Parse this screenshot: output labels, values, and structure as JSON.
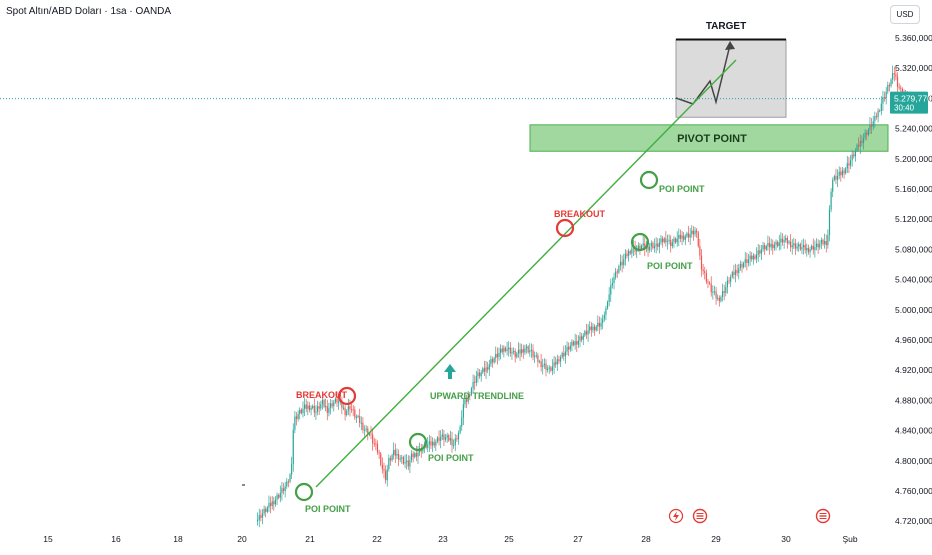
{
  "header": {
    "symbol_title": "Spot Altın/ABD Doları · 1sa · OANDA",
    "currency": "USD"
  },
  "price_tag": {
    "price": "5.279,770",
    "countdown": "30:40"
  },
  "chart_data": {
    "type": "candlestick",
    "x_tick_labels": [
      "15",
      "16",
      "18",
      "20",
      "21",
      "22",
      "23",
      "25",
      "27",
      "28",
      "29",
      "30",
      "Şub"
    ],
    "y_tick_labels": [
      "5.360,000",
      "5.320,000",
      "5.280,000",
      "5.240,000",
      "5.200,000",
      "5.160,000",
      "5.120,000",
      "5.080,000",
      "5.040,000",
      "5.000,000",
      "4.960,000",
      "4.920,000",
      "4.880,000",
      "4.840,000",
      "4.800,000",
      "4.760,000",
      "4.720,000"
    ],
    "y_axis": {
      "min": 4720,
      "max": 5360,
      "step": 40
    },
    "current_price": 5279.77,
    "price_path": [
      [
        0,
        4720
      ],
      [
        3,
        4728
      ],
      [
        6,
        4735
      ],
      [
        9,
        4742
      ],
      [
        13,
        4752
      ],
      [
        16,
        4760
      ],
      [
        19,
        4768
      ],
      [
        21,
        4780
      ],
      [
        22,
        4800
      ],
      [
        23,
        4842
      ],
      [
        24,
        4856
      ],
      [
        26,
        4862
      ],
      [
        28,
        4866
      ],
      [
        30,
        4870
      ],
      [
        33,
        4872
      ],
      [
        35,
        4870
      ],
      [
        37,
        4865
      ],
      [
        39,
        4872
      ],
      [
        41,
        4876
      ],
      [
        44,
        4868
      ],
      [
        47,
        4876
      ],
      [
        50,
        4880
      ],
      [
        53,
        4872
      ],
      [
        55,
        4865
      ],
      [
        58,
        4872
      ],
      [
        61,
        4860
      ],
      [
        64,
        4852
      ],
      [
        67,
        4842
      ],
      [
        70,
        4836
      ],
      [
        72,
        4826
      ],
      [
        74,
        4818
      ],
      [
        76,
        4808
      ],
      [
        78,
        4790
      ],
      [
        80,
        4778
      ],
      [
        82,
        4800
      ],
      [
        85,
        4810
      ],
      [
        88,
        4806
      ],
      [
        91,
        4800
      ],
      [
        94,
        4795
      ],
      [
        96,
        4805
      ],
      [
        99,
        4810
      ],
      [
        102,
        4816
      ],
      [
        105,
        4820
      ],
      [
        108,
        4822
      ],
      [
        111,
        4826
      ],
      [
        114,
        4832
      ],
      [
        117,
        4830
      ],
      [
        120,
        4828
      ],
      [
        122,
        4822
      ],
      [
        124,
        4832
      ],
      [
        126,
        4842
      ],
      [
        127,
        4860
      ],
      [
        128,
        4874
      ],
      [
        130,
        4880
      ],
      [
        132,
        4892
      ],
      [
        134,
        4902
      ],
      [
        136,
        4912
      ],
      [
        139,
        4916
      ],
      [
        142,
        4922
      ],
      [
        145,
        4932
      ],
      [
        148,
        4938
      ],
      [
        151,
        4944
      ],
      [
        154,
        4950
      ],
      [
        157,
        4946
      ],
      [
        160,
        4940
      ],
      [
        163,
        4944
      ],
      [
        166,
        4950
      ],
      [
        169,
        4946
      ],
      [
        172,
        4938
      ],
      [
        175,
        4930
      ],
      [
        178,
        4926
      ],
      [
        181,
        4920
      ],
      [
        184,
        4926
      ],
      [
        187,
        4936
      ],
      [
        190,
        4942
      ],
      [
        193,
        4950
      ],
      [
        196,
        4955
      ],
      [
        199,
        4960
      ],
      [
        202,
        4966
      ],
      [
        205,
        4972
      ],
      [
        208,
        4976
      ],
      [
        211,
        4980
      ],
      [
        214,
        4984
      ],
      [
        215,
        4996
      ],
      [
        217,
        5006
      ],
      [
        218,
        5022
      ],
      [
        220,
        5040
      ],
      [
        222,
        5048
      ],
      [
        224,
        5058
      ],
      [
        226,
        5062
      ],
      [
        228,
        5070
      ],
      [
        230,
        5076
      ],
      [
        232,
        5082
      ],
      [
        235,
        5080
      ],
      [
        238,
        5084
      ],
      [
        241,
        5082
      ],
      [
        244,
        5086
      ],
      [
        247,
        5084
      ],
      [
        250,
        5090
      ],
      [
        253,
        5094
      ],
      [
        256,
        5088
      ],
      [
        259,
        5092
      ],
      [
        262,
        5096
      ],
      [
        265,
        5098
      ],
      [
        268,
        5100
      ],
      [
        271,
        5104
      ],
      [
        272,
        5098
      ],
      [
        273,
        5086
      ],
      [
        274,
        5070
      ],
      [
        275,
        5058
      ],
      [
        277,
        5046
      ],
      [
        279,
        5036
      ],
      [
        281,
        5026
      ],
      [
        283,
        5020
      ],
      [
        285,
        5014
      ],
      [
        287,
        5018
      ],
      [
        290,
        5030
      ],
      [
        292,
        5040
      ],
      [
        295,
        5048
      ],
      [
        298,
        5056
      ],
      [
        301,
        5062
      ],
      [
        304,
        5066
      ],
      [
        307,
        5070
      ],
      [
        310,
        5076
      ],
      [
        313,
        5082
      ],
      [
        316,
        5084
      ],
      [
        319,
        5086
      ],
      [
        322,
        5088
      ],
      [
        325,
        5092
      ],
      [
        328,
        5090
      ],
      [
        331,
        5086
      ],
      [
        334,
        5084
      ],
      [
        337,
        5082
      ],
      [
        340,
        5080
      ],
      [
        343,
        5082
      ],
      [
        346,
        5084
      ],
      [
        349,
        5088
      ],
      [
        352,
        5090
      ],
      [
        353,
        5100
      ],
      [
        354,
        5130
      ],
      [
        355,
        5160
      ],
      [
        356,
        5172
      ],
      [
        358,
        5175
      ],
      [
        361,
        5180
      ],
      [
        364,
        5188
      ],
      [
        367,
        5198
      ],
      [
        370,
        5210
      ],
      [
        373,
        5222
      ],
      [
        376,
        5232
      ],
      [
        379,
        5242
      ],
      [
        382,
        5252
      ],
      [
        384,
        5262
      ],
      [
        386,
        5274
      ],
      [
        388,
        5284
      ],
      [
        390,
        5294
      ],
      [
        392,
        5304
      ],
      [
        394,
        5314
      ],
      [
        396,
        5300
      ],
      [
        398,
        5290
      ],
      [
        400,
        5282
      ],
      [
        402,
        5276
      ],
      [
        404,
        5279.77
      ]
    ],
    "annotations": {
      "target": "TARGET",
      "pivot": "PIVOT POINT",
      "breakout": "BREAKOUT",
      "poi": "POI POINT",
      "trendline": "UPWARD TRENDLINE"
    },
    "zones": {
      "pivot_low": 5210,
      "pivot_high": 5245,
      "target_low": 5255,
      "target_high": 5358
    }
  },
  "colors": {
    "up": "#26a69a",
    "down": "#ef5350",
    "trend": "#3fae3f",
    "pivot_fill": "#8fd18f",
    "pivot_border": "#4caf50",
    "poi_label": "#43a047",
    "breakout_label": "#e53935",
    "target_fill": "#d7d7d7",
    "price_line": "#26a69a",
    "axis_text": "#131722"
  }
}
